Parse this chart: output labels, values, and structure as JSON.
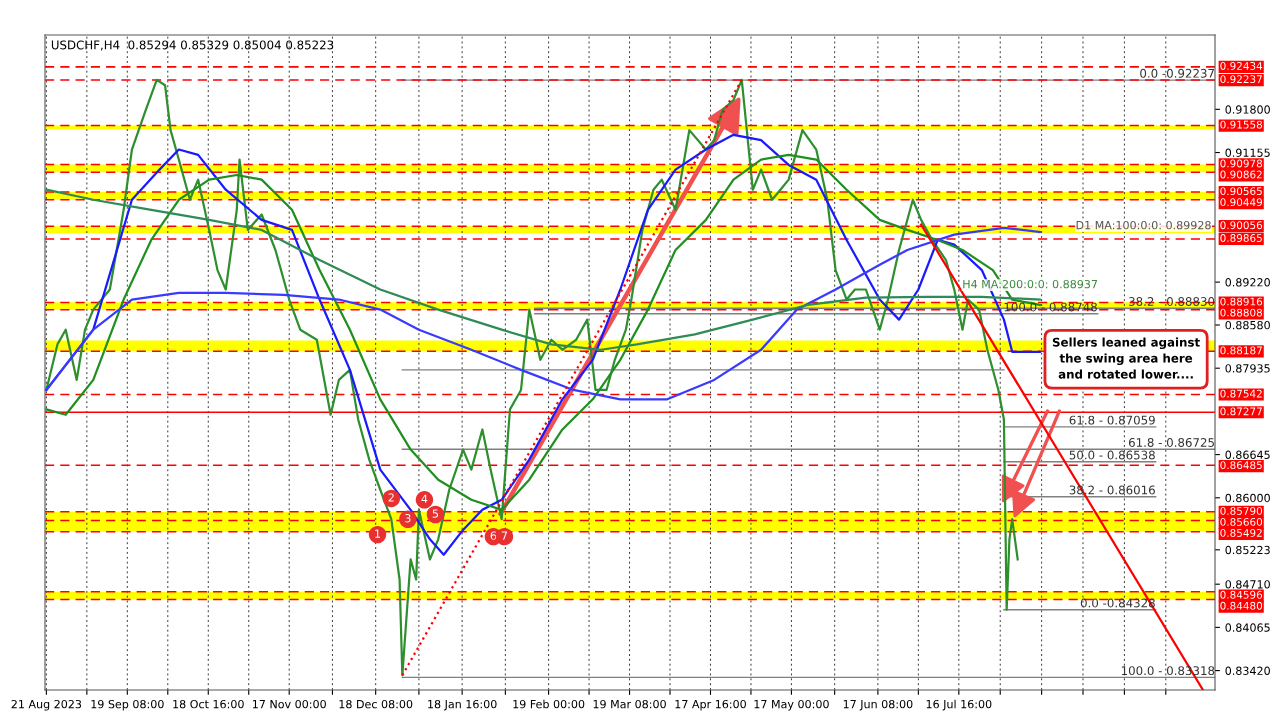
{
  "chart_data": {
    "type": "line",
    "title": "USDCHF,H4  0.85294 0.85329 0.85004 0.85223",
    "xlim": [
      "2023-08-20T12:00",
      "2024-10-17T12:00"
    ],
    "ylim": [
      0.8313,
      0.9291
    ],
    "xticks": [
      {
        "value": "2023-08-21",
        "label": "21 Aug 2023"
      },
      {
        "value": "2023-09-04T16:00",
        "label": null
      },
      {
        "value": "2023-09-19T08:00",
        "label": "19 Sep 08:00"
      },
      {
        "value": "2023-10-04",
        "label": null
      },
      {
        "value": "2023-10-18T16:00",
        "label": "18 Oct 16:00"
      },
      {
        "value": "2023-11-02T08:00",
        "label": null
      },
      {
        "value": "2023-11-17",
        "label": "17 Nov 00:00"
      },
      {
        "value": "2023-12-02T16:00",
        "label": null
      },
      {
        "value": "2023-12-18T08:00",
        "label": "18 Dec 08:00"
      },
      {
        "value": "2024-01-03",
        "label": null
      },
      {
        "value": "2024-01-18T16:00",
        "label": "18 Jan 16:00"
      },
      {
        "value": "2024-02-03T08:00",
        "label": null
      },
      {
        "value": "2024-02-19",
        "label": "19 Feb 00:00"
      },
      {
        "value": "2024-03-04T16:00",
        "label": null
      },
      {
        "value": "2024-03-19T08:00",
        "label": "19 Mar 08:00"
      },
      {
        "value": "2024-04-03",
        "label": null
      },
      {
        "value": "2024-04-17T16:00",
        "label": "17 Apr 16:00"
      },
      {
        "value": "2024-05-02T08:00",
        "label": null
      },
      {
        "value": "2024-05-17",
        "label": "17 May 00:00"
      },
      {
        "value": "2024-06-01T16:00",
        "label": null
      },
      {
        "value": "2024-06-17T08:00",
        "label": "17 Jun 08:00"
      },
      {
        "value": "2024-07-02",
        "label": null
      },
      {
        "value": "2024-07-16T16:00",
        "label": "16 Jul 16:00"
      },
      {
        "value": "2024-07-31T16:00",
        "label": null
      },
      {
        "value": "2024-08-15T16:00",
        "label": null
      },
      {
        "value": "2024-08-30T16:00",
        "label": null
      },
      {
        "value": "2024-09-14T16:00",
        "label": null
      },
      {
        "value": "2024-09-29T16:00",
        "label": null
      }
    ],
    "yticks": [
      {
        "value": 0.918,
        "label": "0.91800"
      },
      {
        "value": 0.91155,
        "label": "0.91155"
      },
      {
        "value": 0.8922,
        "label": "0.89220"
      },
      {
        "value": 0.8858,
        "label": "0.88580"
      },
      {
        "value": 0.87935,
        "label": "0.87935"
      },
      {
        "value": 0.86645,
        "label": "0.86645"
      },
      {
        "value": 0.86,
        "label": "0.86000"
      },
      {
        "value": 0.85223,
        "label": "0.85223"
      },
      {
        "value": 0.8471,
        "label": "0.84710"
      },
      {
        "value": 0.84065,
        "label": "0.84065"
      },
      {
        "value": 0.8342,
        "label": "0.83420"
      }
    ],
    "grid": "x",
    "legend": false,
    "series": [
      {
        "color": "#2f8f2f",
        "x": [
          "2023-08-21",
          "2023-08-25",
          "2023-08-28",
          "2023-09-01",
          "2023-09-04",
          "2023-09-07",
          "2023-09-13",
          "2023-09-18",
          "2023-09-21",
          "2023-09-26",
          "2023-09-30",
          "2023-10-03",
          "2023-10-05",
          "2023-10-08",
          "2023-10-12",
          "2023-10-15",
          "2023-10-19",
          "2023-10-22",
          "2023-10-25",
          "2023-10-29",
          "2023-10-30",
          "2023-11-02",
          "2023-11-07",
          "2023-11-12",
          "2023-11-17",
          "2023-11-21",
          "2023-11-27",
          "2023-12-02",
          "2023-12-05",
          "2023-12-09",
          "2023-12-12",
          "2023-12-16",
          "2023-12-20",
          "2023-12-24",
          "2023-12-27",
          "2023-12-28",
          "2023-12-31",
          "2024-01-02",
          "2024-01-03",
          "2024-01-07",
          "2024-01-10",
          "2024-01-14",
          "2024-01-19",
          "2024-01-22",
          "2024-01-26",
          "2024-01-29",
          "2024-02-02",
          "2024-02-05",
          "2024-02-09",
          "2024-02-12",
          "2024-02-16",
          "2024-02-20",
          "2024-02-24",
          "2024-02-29",
          "2024-03-04",
          "2024-03-07",
          "2024-03-11",
          "2024-03-14",
          "2024-03-18",
          "2024-03-20",
          "2024-03-24",
          "2024-03-28",
          "2024-03-31",
          "2024-04-05",
          "2024-04-10",
          "2024-04-16",
          "2024-04-19",
          "2024-04-22",
          "2024-04-26",
          "2024-04-29",
          "2024-05-03",
          "2024-05-06",
          "2024-05-10",
          "2024-05-13",
          "2024-05-16",
          "2024-05-21",
          "2024-05-26",
          "2024-05-30",
          "2024-06-02",
          "2024-06-06",
          "2024-06-09",
          "2024-06-13",
          "2024-06-18",
          "2024-06-21",
          "2024-06-25",
          "2024-06-30",
          "2024-07-03",
          "2024-07-07",
          "2024-07-12",
          "2024-07-15",
          "2024-07-18",
          "2024-07-20",
          "2024-07-24",
          "2024-07-27",
          "2024-07-31",
          "2024-08-02",
          "2024-08-03",
          "2024-08-04",
          "2024-08-05",
          "2024-08-07"
        ],
        "values": [
          0.8761,
          0.8829,
          0.8851,
          0.8776,
          0.8851,
          0.8881,
          0.8911,
          0.903,
          0.912,
          0.9179,
          0.9224,
          0.9216,
          0.9149,
          0.9105,
          0.9045,
          0.9075,
          0.9,
          0.894,
          0.8911,
          0.903,
          0.9105,
          0.9,
          0.9023,
          0.897,
          0.8896,
          0.8851,
          0.8836,
          0.8724,
          0.8776,
          0.8791,
          0.8717,
          0.8657,
          0.8612,
          0.8568,
          0.8478,
          0.8335,
          0.8508,
          0.8478,
          0.8582,
          0.8508,
          0.8538,
          0.8612,
          0.8672,
          0.8642,
          0.8702,
          0.8642,
          0.8568,
          0.8732,
          0.8761,
          0.8881,
          0.8806,
          0.8836,
          0.8821,
          0.8836,
          0.8866,
          0.8761,
          0.8761,
          0.8806,
          0.8851,
          0.8896,
          0.9,
          0.906,
          0.9075,
          0.903,
          0.9149,
          0.912,
          0.9134,
          0.9179,
          0.9194,
          0.9224,
          0.906,
          0.909,
          0.9045,
          0.906,
          0.9075,
          0.9149,
          0.912,
          0.9045,
          0.894,
          0.8896,
          0.8911,
          0.8911,
          0.8851,
          0.8896,
          0.897,
          0.9045,
          0.9015,
          0.8985,
          0.8955,
          0.8911,
          0.8851,
          0.8896,
          0.8881,
          0.8821,
          0.8761,
          0.8717,
          0.8433,
          0.8538,
          0.8568,
          0.8508
        ]
      },
      {
        "color": "#1a1aff",
        "x": [
          "2023-08-21",
          "2023-09-07",
          "2023-09-21",
          "2023-10-01",
          "2023-10-08",
          "2023-10-15",
          "2023-10-25",
          "2023-11-07",
          "2023-11-18",
          "2023-11-28",
          "2023-12-09",
          "2023-12-20",
          "2023-12-31",
          "2024-01-07",
          "2024-01-12",
          "2024-01-19",
          "2024-01-26",
          "2024-02-02",
          "2024-02-12",
          "2024-02-24",
          "2024-03-06",
          "2024-03-16",
          "2024-03-26",
          "2024-04-05",
          "2024-04-16",
          "2024-04-26",
          "2024-05-06",
          "2024-05-16",
          "2024-05-26",
          "2024-06-06",
          "2024-06-18",
          "2024-06-25",
          "2024-07-02",
          "2024-07-09",
          "2024-07-15",
          "2024-07-25",
          "2024-08-02",
          "2024-08-05",
          "2024-08-15"
        ],
        "values": [
          0.8761,
          0.8851,
          0.9045,
          0.909,
          0.912,
          0.9112,
          0.906,
          0.9015,
          0.9,
          0.8896,
          0.8791,
          0.8642,
          0.8582,
          0.8538,
          0.8515,
          0.8552,
          0.8582,
          0.8597,
          0.8657,
          0.8747,
          0.8806,
          0.8911,
          0.903,
          0.909,
          0.912,
          0.9142,
          0.9134,
          0.9097,
          0.9075,
          0.8985,
          0.8896,
          0.8866,
          0.8911,
          0.8985,
          0.8978,
          0.894,
          0.8866,
          0.8818,
          0.8818
        ]
      },
      {
        "color": "#1f8f1f",
        "x": [
          "2023-08-21",
          "2023-08-28",
          "2023-09-07",
          "2023-09-18",
          "2023-09-28",
          "2023-10-08",
          "2023-10-19",
          "2023-10-29",
          "2023-11-07",
          "2023-11-18",
          "2023-11-28",
          "2023-12-09",
          "2023-12-20",
          "2023-12-31",
          "2024-01-10",
          "2024-01-22",
          "2024-02-02",
          "2024-02-12",
          "2024-02-24",
          "2024-03-06",
          "2024-03-16",
          "2024-03-26",
          "2024-04-05",
          "2024-04-16",
          "2024-04-26",
          "2024-05-06",
          "2024-05-16",
          "2024-05-26",
          "2024-06-06",
          "2024-06-18",
          "2024-06-28",
          "2024-07-09",
          "2024-07-18",
          "2024-07-29",
          "2024-08-05",
          "2024-08-15"
        ],
        "values": [
          0.8732,
          0.8724,
          0.8776,
          0.8896,
          0.8985,
          0.9045,
          0.9075,
          0.9082,
          0.9075,
          0.903,
          0.894,
          0.8851,
          0.8747,
          0.8672,
          0.8627,
          0.8597,
          0.8582,
          0.8627,
          0.8702,
          0.8747,
          0.8806,
          0.8881,
          0.897,
          0.9015,
          0.9075,
          0.9105,
          0.9112,
          0.9105,
          0.906,
          0.9015,
          0.9,
          0.8985,
          0.897,
          0.894,
          0.8896,
          0.8888
        ]
      },
      {
        "color": "#3a3aff",
        "x": [
          "2023-08-21",
          "2023-09-07",
          "2023-09-21",
          "2023-10-08",
          "2023-10-25",
          "2023-11-15",
          "2023-12-05",
          "2023-12-20",
          "2024-01-03",
          "2024-01-22",
          "2024-02-09",
          "2024-02-28",
          "2024-03-16",
          "2024-04-02",
          "2024-04-19",
          "2024-05-06",
          "2024-05-19",
          "2024-06-02",
          "2024-06-18",
          "2024-06-28",
          "2024-07-15",
          "2024-08-02",
          "2024-08-15"
        ],
        "values": [
          0.8761,
          0.8851,
          0.8896,
          0.8906,
          0.8906,
          0.8903,
          0.8896,
          0.8881,
          0.8851,
          0.8821,
          0.8791,
          0.8761,
          0.8747,
          0.8747,
          0.8776,
          0.8821,
          0.8881,
          0.8911,
          0.8948,
          0.897,
          0.8993,
          0.9003,
          0.8997
        ]
      },
      {
        "color": "#2e8b57",
        "x": [
          "2023-08-21",
          "2023-09-07",
          "2023-09-28",
          "2023-10-19",
          "2023-11-07",
          "2023-11-28",
          "2023-12-20",
          "2024-01-10",
          "2024-02-02",
          "2024-02-20",
          "2024-03-09",
          "2024-03-22",
          "2024-04-12",
          "2024-05-03",
          "2024-05-23",
          "2024-06-13",
          "2024-07-05",
          "2024-07-25",
          "2024-08-15"
        ],
        "values": [
          0.906,
          0.9045,
          0.903,
          0.9015,
          0.9,
          0.8955,
          0.8911,
          0.8881,
          0.8851,
          0.8829,
          0.8821,
          0.8829,
          0.8844,
          0.8866,
          0.8888,
          0.8899,
          0.89,
          0.89,
          0.8896
        ]
      },
      {
        "color": "#ff0000",
        "x": [
          "2024-07-03",
          "2024-10-13"
        ],
        "values": [
          0.9008,
          0.8314
        ]
      },
      {
        "color": "#ff0000",
        "line_style": "dotted",
        "x": [
          "2023-12-28",
          "2024-04-29"
        ],
        "values": [
          0.8335,
          0.9224
        ]
      },
      {
        "name": "0.0 -0.92237",
        "color": "#808080",
        "x": [
          "2023-12-28",
          "2024-10-17T12:00"
        ],
        "values": [
          0.92237,
          0.92237
        ]
      },
      {
        "name": "38.2 - 0.88830",
        "color": "#808080",
        "x": [
          "2024-02-14",
          "2024-10-17T12:00"
        ],
        "values": [
          0.8883,
          0.8883
        ]
      },
      {
        "name": "100.0 - 0.88748",
        "color": "#808080",
        "x": [
          "2024-02-14",
          "2024-09-05"
        ],
        "values": [
          0.88748,
          0.88748
        ]
      },
      {
        "color": "#808080",
        "x": [
          "2023-12-28",
          "2024-08-02"
        ],
        "values": [
          0.8791,
          0.8791
        ]
      },
      {
        "name": "61.8 - 0.87059",
        "color": "#808080",
        "x": [
          "2024-08-02",
          "2024-09-26"
        ],
        "values": [
          0.87059,
          0.87059
        ]
      },
      {
        "name": "61.8 - 0.86725",
        "color": "#808080",
        "x": [
          "2023-12-28",
          "2024-10-17T12:00"
        ],
        "values": [
          0.86725,
          0.86725
        ]
      },
      {
        "name": "50.0 - 0.86538",
        "color": "#808080",
        "x": [
          "2024-08-02",
          "2024-09-26"
        ],
        "values": [
          0.86538,
          0.86538
        ]
      },
      {
        "name": "38.2 - 0.86016",
        "color": "#808080",
        "x": [
          "2024-08-02",
          "2024-09-26"
        ],
        "values": [
          0.86016,
          0.86016
        ]
      },
      {
        "name": "0.0 -0.84328",
        "color": "#808080",
        "x": [
          "2024-08-02",
          "2024-09-26"
        ],
        "values": [
          0.84328,
          0.84328
        ]
      },
      {
        "name": "100.0 - 0.83318",
        "color": "#808080",
        "x": [
          "2023-12-28",
          "2024-10-17T12:00"
        ],
        "values": [
          0.83318,
          0.83318
        ]
      }
    ],
    "bands": [
      {
        "axis": "y",
        "from": 0.915,
        "to": 0.91558,
        "color": "#ffff00"
      },
      {
        "axis": "y",
        "from": 0.90862,
        "to": 0.90978,
        "color": "#ffff00"
      },
      {
        "axis": "y",
        "from": 0.90449,
        "to": 0.90565,
        "color": "#ffff00"
      },
      {
        "axis": "y",
        "from": 0.8995,
        "to": 0.90056,
        "color": "#ffff00"
      },
      {
        "axis": "y",
        "from": 0.88808,
        "to": 0.8892,
        "color": "#ffff00"
      },
      {
        "axis": "y",
        "from": 0.8819,
        "to": 0.8835,
        "color": "#ffff00"
      },
      {
        "axis": "y",
        "from": 0.85492,
        "to": 0.8579,
        "color": "#ffff00"
      },
      {
        "axis": "y",
        "from": 0.8448,
        "to": 0.84596,
        "color": "#ffff00"
      }
    ],
    "ref_lines": [
      {
        "axis": "y",
        "value": 0.92434,
        "label": "0.92434",
        "color": "#ff0000",
        "line_style": "dashed"
      },
      {
        "axis": "y",
        "value": 0.92237,
        "label": "0.92237",
        "color": "#ff0000",
        "line_style": "dashed"
      },
      {
        "axis": "y",
        "value": 0.91558,
        "label": "0.91558",
        "color": "#ff0000",
        "line_style": "dashed"
      },
      {
        "axis": "y",
        "value": 0.90978,
        "label": "0.90978",
        "color": "#ff0000",
        "line_style": "dashed"
      },
      {
        "axis": "y",
        "value": 0.90862,
        "label": "0.90862",
        "color": "#ff0000",
        "line_style": "dashed"
      },
      {
        "axis": "y",
        "value": 0.90565,
        "label": "0.90565",
        "color": "#ff0000",
        "line_style": "dashed"
      },
      {
        "axis": "y",
        "value": 0.90449,
        "label": "0.90449",
        "color": "#ff0000",
        "line_style": "dashed"
      },
      {
        "axis": "y",
        "value": 0.90056,
        "label": "0.90056",
        "color": "#ff0000",
        "line_style": "dashed"
      },
      {
        "axis": "y",
        "value": 0.89865,
        "label": "0.89865",
        "color": "#ff0000",
        "line_style": "dashed"
      },
      {
        "axis": "y",
        "value": 0.88916,
        "label": "0.88916",
        "color": "#ff0000",
        "line_style": "dashed"
      },
      {
        "axis": "y",
        "value": 0.88808,
        "label": "0.88808",
        "color": "#ff0000",
        "line_style": "dashed"
      },
      {
        "axis": "y",
        "value": 0.88187,
        "label": "0.88187",
        "color": "#ff0000",
        "line_style": "dashed"
      },
      {
        "axis": "y",
        "value": 0.87542,
        "label": "0.87542",
        "color": "#ff0000",
        "line_style": "dashed"
      },
      {
        "axis": "y",
        "value": 0.87277,
        "label": "0.87277",
        "color": "#ff0000",
        "line_style": "solid"
      },
      {
        "axis": "y",
        "value": 0.86485,
        "label": "0.86485",
        "color": "#ff0000",
        "line_style": "dashed"
      },
      {
        "axis": "y",
        "value": 0.8579,
        "label": "0.85790",
        "color": "#ff0000",
        "line_style": "dashed"
      },
      {
        "axis": "y",
        "value": 0.8566,
        "label": "0.85660",
        "color": "#ff0000",
        "line_style": "dashed"
      },
      {
        "axis": "y",
        "value": 0.85492,
        "label": "0.85492",
        "color": "#ff0000",
        "line_style": "dashed"
      },
      {
        "axis": "y",
        "value": 0.84596,
        "label": "0.84596",
        "color": "#ff0000",
        "line_style": "dashed"
      },
      {
        "axis": "y",
        "value": 0.8448,
        "label": "0.84480",
        "color": "#ff0000",
        "line_style": "dashed"
      }
    ],
    "annotations": [
      "Sellers leaned against\nthe swing area here\nand rotated lower....",
      "D1 MA:100:0:0: 0.89928",
      "H4 MA:200:0:0: 0.88937",
      {
        "text": "1",
        "x": "2023-12-19",
        "y": 0.8545
      },
      {
        "text": "2",
        "x": "2023-12-24",
        "y": 0.8599
      },
      {
        "text": "3",
        "x": "2023-12-30",
        "y": 0.8568
      },
      {
        "text": "4",
        "x": "2024-01-05",
        "y": 0.8597
      },
      {
        "text": "5",
        "x": "2024-01-09",
        "y": 0.8575
      },
      {
        "text": "6",
        "x": "2024-01-30",
        "y": 0.8542
      },
      {
        "text": "7",
        "x": "2024-02-03",
        "y": 0.8542
      }
    ]
  }
}
